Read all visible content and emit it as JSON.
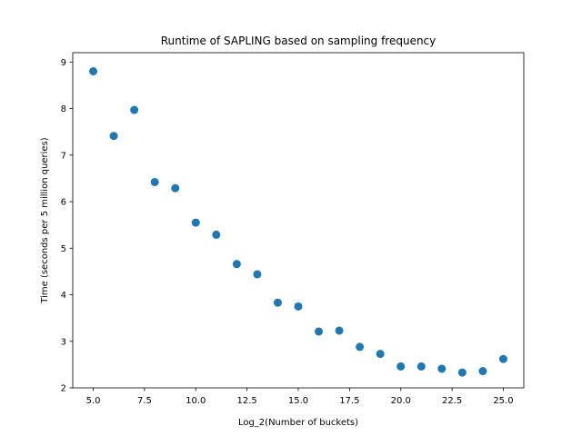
{
  "chart_data": {
    "type": "scatter",
    "title": "Runtime of SAPLING based on sampling frequency",
    "xlabel": "Log_2(Number of buckets)",
    "ylabel": "Time (seconds per 5 million queries)",
    "xlim": [
      4.0,
      26.0
    ],
    "ylim": [
      2.0,
      9.2
    ],
    "xticks": [
      5.0,
      7.5,
      10.0,
      12.5,
      15.0,
      17.5,
      20.0,
      22.5,
      25.0
    ],
    "xtick_labels": [
      "5.0",
      "7.5",
      "10.0",
      "12.5",
      "15.0",
      "17.5",
      "20.0",
      "22.5",
      "25.0"
    ],
    "yticks": [
      2,
      3,
      4,
      5,
      6,
      7,
      8,
      9
    ],
    "ytick_labels": [
      "2",
      "3",
      "4",
      "5",
      "6",
      "7",
      "8",
      "9"
    ],
    "grid": false,
    "color": "#1f77b4",
    "x": [
      5,
      6,
      7,
      8,
      9,
      10,
      11,
      12,
      13,
      14,
      15,
      16,
      17,
      18,
      19,
      20,
      21,
      22,
      23,
      24,
      25
    ],
    "y": [
      8.8,
      7.41,
      7.97,
      6.42,
      6.29,
      5.55,
      5.29,
      4.66,
      4.44,
      3.83,
      3.75,
      3.21,
      3.23,
      2.88,
      2.73,
      2.46,
      2.46,
      2.41,
      2.33,
      2.36,
      2.62
    ]
  }
}
